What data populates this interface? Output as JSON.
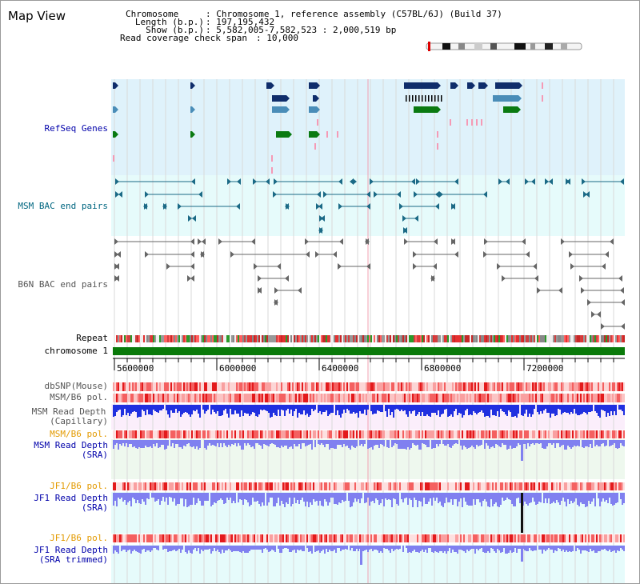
{
  "title": "Map View",
  "info": {
    "chromosome_key": "Chromosome",
    "chromosome_val": ": Chromosome 1, reference assembly (C57BL/6J) (Build 37)",
    "length_key": "Length (b.p.)",
    "length_val": ": 197,195,432",
    "show_key": "Show (b.p.)",
    "show_val": ": 5,582,005-7,582,523 : 2,000,519 bp",
    "coverage_key": "Read coverage check span",
    "coverage_val": ": 10,000"
  },
  "tracks": {
    "refseq": "RefSeq Genes",
    "msm_bac": "MSM BAC end pairs",
    "b6n_bac": "B6N BAC end pairs",
    "repeat": "Repeat",
    "chromosome": "chromosome 1",
    "dbsnp": "dbSNP(Mouse)",
    "msm_b6_pol_1": "MSM/B6 pol.",
    "msm_depth_cap_1": "MSM Read Depth",
    "msm_depth_cap_2": "(Capillary)",
    "msm_b6_pol_2": "MSM/B6 pol.",
    "msm_depth_sra_1": "MSM Read Depth",
    "msm_depth_sra_2": "(SRA)",
    "jf1_b6_pol_1": "JF1/B6 pol.",
    "jf1_depth_sra_1": "JF1 Read Depth",
    "jf1_depth_sra_2": "(SRA)",
    "jf1_b6_pol_2": "JF1/B6 pol.",
    "jf1_depth_trim_1": "JF1 Read Depth",
    "jf1_depth_trim_2": "(SRA trimmed)"
  },
  "axis": {
    "ticks": [
      "5600000",
      "6000000",
      "6400000",
      "6800000",
      "7200000"
    ]
  },
  "colors": {
    "refseq_bg": "#dff2fb",
    "msm_bac_bg": "#e6fbfb",
    "gene_navy": "#0f2d6b",
    "gene_blue": "#4a8db8",
    "gene_green": "#0a7a12",
    "label_blue": "#0000aa",
    "label_teal": "#006680",
    "label_gray": "#555555",
    "label_orange": "#e39a00",
    "chromosome_green": "#0a7a0a"
  }
}
